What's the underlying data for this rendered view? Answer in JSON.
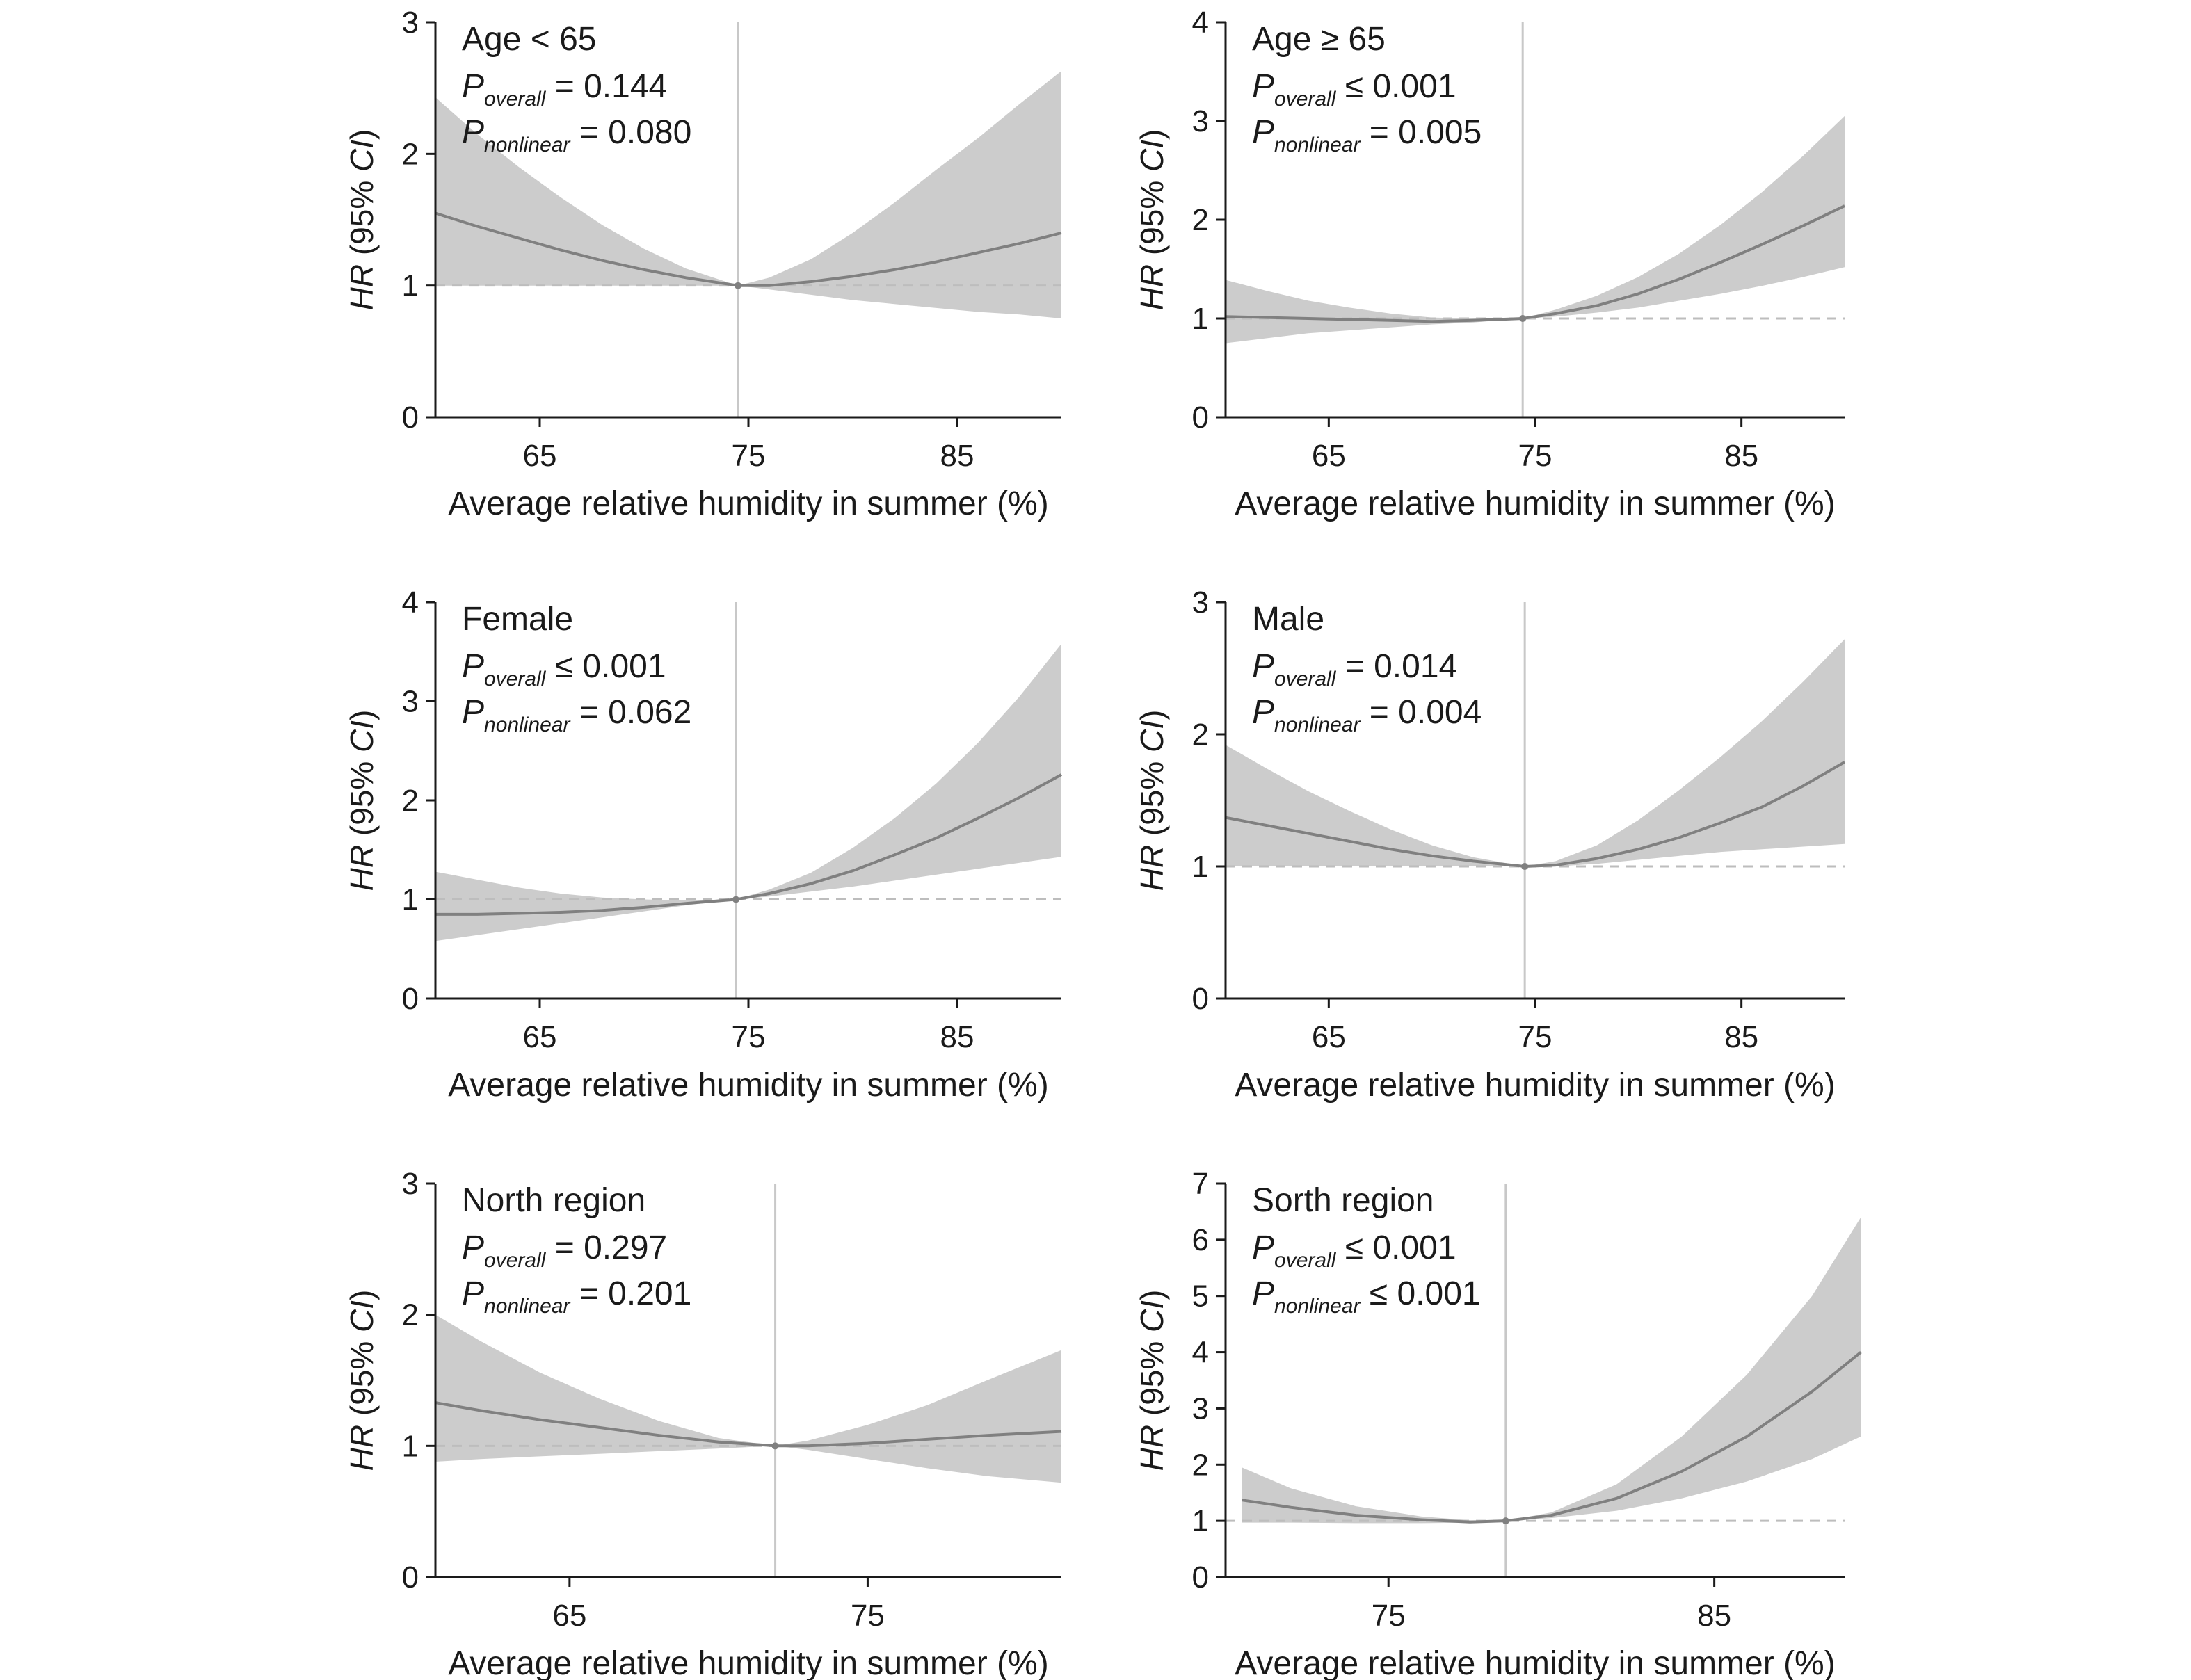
{
  "figure": {
    "colors": {
      "band": "#cccccc",
      "curve": "#808080",
      "axis": "#1a1a1a",
      "reference_line": "#bdbdbd",
      "vline": "#c8c8c8",
      "text": "#1a1a1a"
    }
  },
  "chart_data": [
    {
      "type": "area",
      "title": "Age < 65",
      "stats": [
        {
          "sub": "overall",
          "rel": "=",
          "value": "0.144"
        },
        {
          "sub": "nonlinear",
          "rel": "=",
          "value": "0.080"
        }
      ],
      "xlabel": "Average relative humidity in summer (%)",
      "ylabel_main": "HR",
      "ylabel_rest": " (95% ",
      "ylabel_ci": "CI",
      "ylabel_close": ")",
      "xlim": [
        60,
        90
      ],
      "ylim": [
        0,
        3
      ],
      "xticks": [
        65,
        75,
        85
      ],
      "yticks": [
        0,
        1,
        2,
        3
      ],
      "ref_x": 74.5,
      "ref_y": 1,
      "x": [
        60,
        62,
        64,
        66,
        68,
        70,
        72,
        74.5,
        76,
        78,
        80,
        82,
        84,
        86,
        88,
        90
      ],
      "hr": [
        1.55,
        1.45,
        1.36,
        1.27,
        1.19,
        1.12,
        1.06,
        1.0,
        1.0,
        1.03,
        1.07,
        1.12,
        1.18,
        1.25,
        1.32,
        1.4
      ],
      "lower": [
        1.0,
        1.0,
        1.0,
        1.0,
        1.0,
        1.0,
        1.0,
        1.0,
        0.97,
        0.93,
        0.89,
        0.86,
        0.83,
        0.8,
        0.78,
        0.75
      ],
      "upper": [
        2.43,
        2.15,
        1.9,
        1.67,
        1.46,
        1.28,
        1.13,
        1.0,
        1.06,
        1.2,
        1.4,
        1.63,
        1.88,
        2.12,
        2.38,
        2.63
      ]
    },
    {
      "type": "area",
      "title": "Age ≥ 65",
      "stats": [
        {
          "sub": "overall",
          "rel": "≤",
          "value": "0.001"
        },
        {
          "sub": "nonlinear",
          "rel": "=",
          "value": "0.005"
        }
      ],
      "xlabel": "Average relative humidity in summer (%)",
      "ylabel_main": "HR",
      "ylabel_rest": " (95% ",
      "ylabel_ci": "CI",
      "ylabel_close": ")",
      "xlim": [
        60,
        90
      ],
      "ylim": [
        0,
        4
      ],
      "xticks": [
        65,
        75,
        85
      ],
      "yticks": [
        0,
        1,
        2,
        3,
        4
      ],
      "ref_x": 74.4,
      "ref_y": 1,
      "x": [
        60,
        62,
        64,
        66,
        68,
        70,
        72,
        74.4,
        76,
        78,
        80,
        82,
        84,
        86,
        88,
        90
      ],
      "hr": [
        1.02,
        1.01,
        1.0,
        0.99,
        0.98,
        0.97,
        0.98,
        1.0,
        1.05,
        1.13,
        1.25,
        1.4,
        1.57,
        1.75,
        1.94,
        2.14
      ],
      "lower": [
        0.75,
        0.8,
        0.85,
        0.88,
        0.91,
        0.94,
        0.96,
        1.0,
        1.02,
        1.06,
        1.11,
        1.18,
        1.25,
        1.33,
        1.42,
        1.52
      ],
      "upper": [
        1.39,
        1.28,
        1.18,
        1.11,
        1.05,
        1.01,
        1.0,
        1.0,
        1.09,
        1.23,
        1.42,
        1.66,
        1.95,
        2.28,
        2.65,
        3.05
      ]
    },
    {
      "type": "area",
      "title": "Female",
      "stats": [
        {
          "sub": "overall",
          "rel": "≤",
          "value": "0.001"
        },
        {
          "sub": "nonlinear",
          "rel": "=",
          "value": "0.062"
        }
      ],
      "xlabel": "Average relative humidity in summer (%)",
      "ylabel_main": "HR",
      "ylabel_rest": " (95% ",
      "ylabel_ci": "CI",
      "ylabel_close": ")",
      "xlim": [
        60,
        90
      ],
      "ylim": [
        0,
        4
      ],
      "xticks": [
        65,
        75,
        85
      ],
      "yticks": [
        0,
        1,
        2,
        3,
        4
      ],
      "ref_x": 74.4,
      "ref_y": 1,
      "x": [
        60,
        62,
        64,
        66,
        68,
        70,
        72,
        74.4,
        76,
        78,
        80,
        82,
        84,
        86,
        88,
        90
      ],
      "hr": [
        0.85,
        0.85,
        0.86,
        0.87,
        0.89,
        0.92,
        0.96,
        1.0,
        1.06,
        1.16,
        1.29,
        1.45,
        1.62,
        1.82,
        2.03,
        2.26
      ],
      "lower": [
        0.58,
        0.64,
        0.7,
        0.76,
        0.82,
        0.88,
        0.94,
        1.0,
        1.03,
        1.08,
        1.13,
        1.19,
        1.25,
        1.31,
        1.37,
        1.43
      ],
      "upper": [
        1.28,
        1.2,
        1.12,
        1.06,
        1.02,
        1.0,
        0.99,
        1.0,
        1.1,
        1.27,
        1.52,
        1.82,
        2.17,
        2.58,
        3.05,
        3.58
      ]
    },
    {
      "type": "area",
      "title": "Male",
      "stats": [
        {
          "sub": "overall",
          "rel": "=",
          "value": "0.014"
        },
        {
          "sub": "nonlinear",
          "rel": "=",
          "value": "0.004"
        }
      ],
      "xlabel": "Average relative humidity in summer (%)",
      "ylabel_main": "HR",
      "ylabel_rest": " (95% ",
      "ylabel_ci": "CI",
      "ylabel_close": ")",
      "xlim": [
        60,
        90
      ],
      "ylim": [
        0,
        3
      ],
      "xticks": [
        65,
        75,
        85
      ],
      "yticks": [
        0,
        1,
        2,
        3
      ],
      "ref_x": 74.5,
      "ref_y": 1,
      "x": [
        60,
        62,
        64,
        66,
        68,
        70,
        72,
        74.5,
        76,
        78,
        80,
        82,
        84,
        86,
        88,
        90
      ],
      "hr": [
        1.37,
        1.31,
        1.25,
        1.19,
        1.13,
        1.08,
        1.04,
        1.0,
        1.01,
        1.06,
        1.13,
        1.22,
        1.33,
        1.45,
        1.61,
        1.79
      ],
      "lower": [
        1.0,
        1.0,
        1.0,
        1.0,
        1.0,
        1.0,
        1.0,
        1.0,
        1.0,
        1.02,
        1.05,
        1.08,
        1.11,
        1.13,
        1.15,
        1.17
      ],
      "upper": [
        1.92,
        1.74,
        1.57,
        1.42,
        1.28,
        1.16,
        1.07,
        1.0,
        1.04,
        1.16,
        1.35,
        1.58,
        1.83,
        2.1,
        2.4,
        2.72
      ]
    },
    {
      "type": "area",
      "title": "North region",
      "stats": [
        {
          "sub": "overall",
          "rel": "=",
          "value": "0.297"
        },
        {
          "sub": "nonlinear",
          "rel": "=",
          "value": "0.201"
        }
      ],
      "xlabel": "Average relative humidity in summer (%)",
      "ylabel_main": "HR",
      "ylabel_rest": " (95% ",
      "ylabel_ci": "CI",
      "ylabel_close": ")",
      "xlim": [
        60.5,
        81.5
      ],
      "ylim": [
        0,
        3
      ],
      "xticks": [
        65,
        75
      ],
      "yticks": [
        0,
        1,
        2,
        3
      ],
      "ref_x": 71.9,
      "ref_y": 1,
      "x": [
        60.5,
        62,
        64,
        66,
        68,
        70,
        71.9,
        73,
        75,
        77,
        79,
        81.5
      ],
      "hr": [
        1.33,
        1.27,
        1.2,
        1.14,
        1.08,
        1.03,
        1.0,
        1.0,
        1.02,
        1.05,
        1.08,
        1.11
      ],
      "lower": [
        0.88,
        0.9,
        0.92,
        0.94,
        0.96,
        0.98,
        1.0,
        0.97,
        0.9,
        0.83,
        0.77,
        0.72
      ],
      "upper": [
        2.0,
        1.8,
        1.56,
        1.36,
        1.19,
        1.06,
        1.0,
        1.04,
        1.16,
        1.31,
        1.5,
        1.73
      ]
    },
    {
      "type": "area",
      "title": "Sorth region",
      "stats": [
        {
          "sub": "overall",
          "rel": "≤",
          "value": "0.001"
        },
        {
          "sub": "nonlinear",
          "rel": "≤",
          "value": "0.001"
        }
      ],
      "xlabel": "Average relative humidity in summer (%)",
      "ylabel_main": "HR",
      "ylabel_rest": " (95% ",
      "ylabel_ci": "CI",
      "ylabel_close": ")",
      "xlim": [
        70,
        89
      ],
      "ylim": [
        0,
        7
      ],
      "xticks": [
        75,
        85
      ],
      "yticks": [
        0,
        1,
        2,
        3,
        4,
        5,
        6,
        7
      ],
      "ref_x": 78.6,
      "ref_y": 1,
      "x": [
        70.5,
        72,
        74,
        76,
        77.5,
        78.6,
        80,
        82,
        84,
        86,
        88,
        89.5
      ],
      "hr": [
        1.37,
        1.24,
        1.1,
        1.02,
        0.98,
        1.0,
        1.1,
        1.4,
        1.88,
        2.5,
        3.3,
        4.0
      ],
      "lower": [
        0.97,
        0.97,
        0.96,
        0.96,
        0.97,
        1.0,
        1.05,
        1.18,
        1.4,
        1.7,
        2.1,
        2.5
      ],
      "upper": [
        1.95,
        1.58,
        1.26,
        1.08,
        1.01,
        1.0,
        1.15,
        1.65,
        2.5,
        3.6,
        5.0,
        6.4
      ]
    }
  ]
}
